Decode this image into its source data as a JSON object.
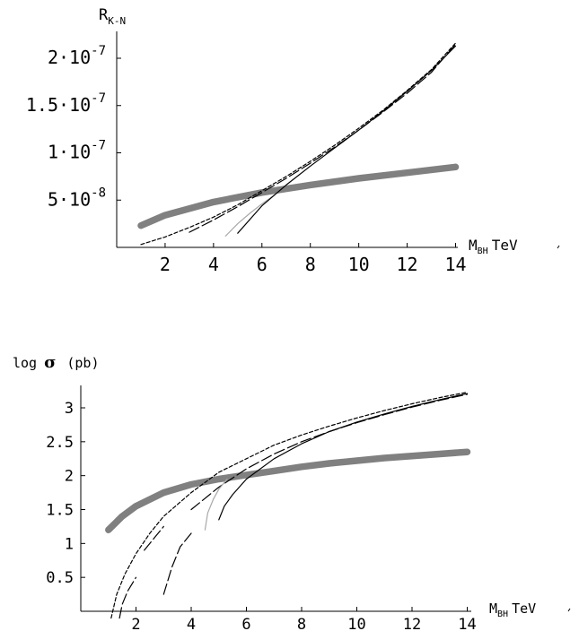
{
  "chart_data": [
    {
      "type": "line",
      "ylabel_main": "R",
      "ylabel_sub": "K-N",
      "xlabel_main": "M",
      "xlabel_sub": "BH",
      "xlabel_unit": "TeV",
      "xlim": [
        0,
        14
      ],
      "ylim": [
        0,
        2.5e-07
      ],
      "x_ticks": [
        "2",
        "4",
        "6",
        "8",
        "10",
        "12",
        "14"
      ],
      "y_ticks": [
        {
          "value": 5e-08,
          "mant": "5",
          "exp": "-8"
        },
        {
          "value": 1e-07,
          "mant": "1",
          "exp": "-7"
        },
        {
          "value": 1.5e-07,
          "mant": "1.5",
          "exp": "-7"
        },
        {
          "value": 2e-07,
          "mant": "2",
          "exp": "-7"
        }
      ],
      "series": [
        {
          "style": "thick-gray",
          "color": "#808080",
          "x": [
            1,
            2,
            4,
            6,
            8,
            10,
            12,
            14
          ],
          "y": [
            2.3e-08,
            3.4e-08,
            4.8e-08,
            5.8e-08,
            6.6e-08,
            7.3e-08,
            7.9e-08,
            8.5e-08
          ]
        },
        {
          "style": "short-dash",
          "color": "#000000",
          "x": [
            1,
            2,
            3,
            4,
            5,
            6,
            7,
            8,
            9,
            10,
            11,
            12,
            13,
            14
          ],
          "y": [
            3e-09,
            1.1e-08,
            2.1e-08,
            3.2e-08,
            4.5e-08,
            6e-08,
            7.5e-08,
            9.1e-08,
            1.08e-07,
            1.26e-07,
            1.45e-07,
            1.66e-07,
            1.88e-07,
            2.16e-07
          ]
        },
        {
          "style": "long-dash",
          "color": "#000000",
          "x": [
            3,
            4,
            5,
            6,
            7,
            8,
            9,
            10,
            11,
            12,
            13,
            14
          ],
          "y": [
            1.6e-08,
            2.9e-08,
            4.3e-08,
            5.8e-08,
            7.3e-08,
            8.9e-08,
            1.06e-07,
            1.24e-07,
            1.43e-07,
            1.63e-07,
            1.85e-07,
            2.15e-07
          ]
        },
        {
          "style": "thin-gray",
          "color": "#a8a8a8",
          "x": [
            4.5,
            5,
            5.5,
            6,
            6.5
          ],
          "y": [
            1.2e-08,
            2.5e-08,
            3.6e-08,
            4.6e-08,
            5.5e-08
          ]
        },
        {
          "style": "solid",
          "color": "#000000",
          "x": [
            5,
            6,
            7,
            8,
            9,
            10,
            11,
            12,
            13,
            14
          ],
          "y": [
            1.5e-08,
            4.4e-08,
            6.6e-08,
            8.6e-08,
            1.05e-07,
            1.24e-07,
            1.44e-07,
            1.65e-07,
            1.87e-07,
            2.13e-07
          ]
        }
      ]
    },
    {
      "type": "line",
      "ylabel_main": "log",
      "ylabel_sigma": "σ",
      "ylabel_unit": "(pb)",
      "xlabel_main": "M",
      "xlabel_sub": "BH",
      "xlabel_unit": "TeV",
      "xlim": [
        0,
        14
      ],
      "ylim": [
        0,
        3.3
      ],
      "x_ticks": [
        "2",
        "4",
        "6",
        "8",
        "10",
        "12",
        "14"
      ],
      "y_ticks": [
        {
          "value": 0.5,
          "label": "0.5"
        },
        {
          "value": 1,
          "label": "1"
        },
        {
          "value": 1.5,
          "label": "1.5"
        },
        {
          "value": 2,
          "label": "2"
        },
        {
          "value": 2.5,
          "label": "2.5"
        },
        {
          "value": 3,
          "label": "3"
        }
      ],
      "series": [
        {
          "style": "thick-gray",
          "color": "#808080",
          "x": [
            1,
            1.5,
            2,
            3,
            4,
            5,
            6,
            7,
            8,
            9,
            10,
            11,
            12,
            13,
            14
          ],
          "y": [
            1.2,
            1.4,
            1.55,
            1.75,
            1.87,
            1.95,
            2.01,
            2.07,
            2.13,
            2.18,
            2.22,
            2.26,
            2.29,
            2.32,
            2.35
          ]
        },
        {
          "style": "short-dash",
          "color": "#000000",
          "x": [
            1.1,
            1.3,
            1.6,
            2,
            2.5,
            3,
            4,
            5,
            6,
            7,
            8,
            9,
            10,
            11,
            12,
            13,
            14
          ],
          "y": [
            -0.1,
            0.25,
            0.55,
            0.85,
            1.15,
            1.4,
            1.75,
            2.05,
            2.25,
            2.45,
            2.6,
            2.73,
            2.85,
            2.96,
            3.06,
            3.15,
            3.23
          ]
        },
        {
          "style": "long-dash",
          "color": "#000000",
          "x": [
            1.4,
            1.5,
            1.7,
            2
          ],
          "y": [
            -0.1,
            0.1,
            0.3,
            0.5
          ]
        },
        {
          "style": "long-dash",
          "color": "#000000",
          "x": [
            2.3,
            2.7,
            3
          ],
          "y": [
            0.9,
            1.1,
            1.25
          ]
        },
        {
          "style": "long-dash",
          "color": "#000000",
          "x": [
            3,
            3.3,
            3.6,
            4
          ],
          "y": [
            0.25,
            0.65,
            0.95,
            1.15
          ]
        },
        {
          "style": "long-dash",
          "color": "#000000",
          "x": [
            4,
            5,
            6,
            7,
            8,
            9,
            10,
            11,
            12,
            13,
            14
          ],
          "y": [
            1.5,
            1.83,
            2.1,
            2.32,
            2.5,
            2.65,
            2.78,
            2.9,
            3.01,
            3.11,
            3.2
          ]
        },
        {
          "style": "thin-gray",
          "color": "#a8a8a8",
          "x": [
            4.5,
            4.6,
            4.8,
            5,
            5.3
          ],
          "y": [
            1.2,
            1.45,
            1.65,
            1.8,
            1.95
          ]
        },
        {
          "style": "solid",
          "color": "#000000",
          "x": [
            5,
            5.2,
            5.5,
            6,
            7,
            8,
            9,
            10,
            11,
            12,
            13,
            14
          ],
          "y": [
            1.35,
            1.55,
            1.72,
            1.95,
            2.25,
            2.47,
            2.65,
            2.79,
            2.91,
            3.02,
            3.12,
            3.21
          ]
        }
      ]
    }
  ]
}
